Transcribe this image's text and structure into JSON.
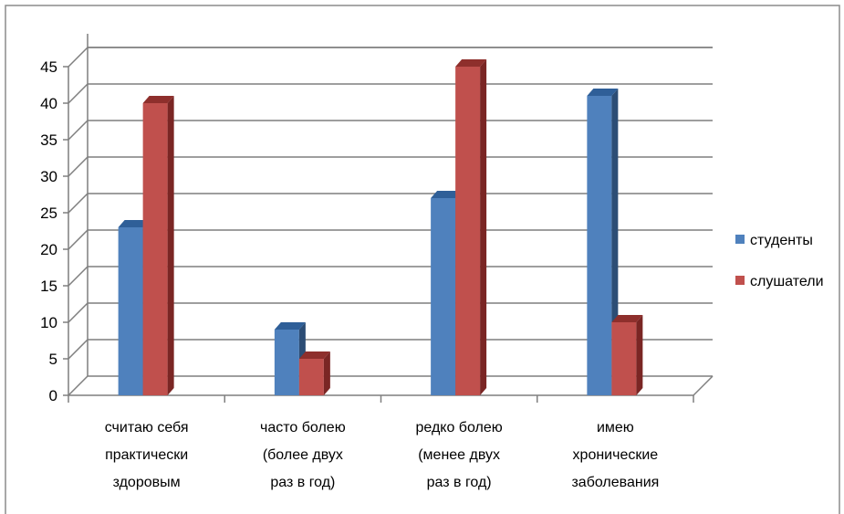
{
  "chart_data": {
    "type": "bar",
    "variant": "3d-clustered-column",
    "categories": [
      [
        "считаю себя",
        "практически",
        "здоровым"
      ],
      [
        "часто болею",
        "(более двух",
        "раз в год)"
      ],
      [
        "редко болею",
        "(менее двух",
        "раз в год)"
      ],
      [
        "имею",
        "хронические",
        "заболевания"
      ]
    ],
    "series": [
      {
        "name": "студенты",
        "values": [
          23,
          9,
          27,
          41
        ],
        "color": "#4F81BD",
        "top": "#2F5F98",
        "side": "#2C4D75"
      },
      {
        "name": "слушатели",
        "values": [
          40,
          5,
          45,
          10
        ],
        "color": "#C0504D",
        "top": "#8E2F2C",
        "side": "#7A2624"
      }
    ],
    "y_ticks": [
      0,
      5,
      10,
      15,
      20,
      25,
      30,
      35,
      40,
      45
    ],
    "ylim": [
      0,
      45
    ],
    "grid": true,
    "legend_position": "right",
    "title": "",
    "xlabel": "",
    "ylabel": ""
  }
}
